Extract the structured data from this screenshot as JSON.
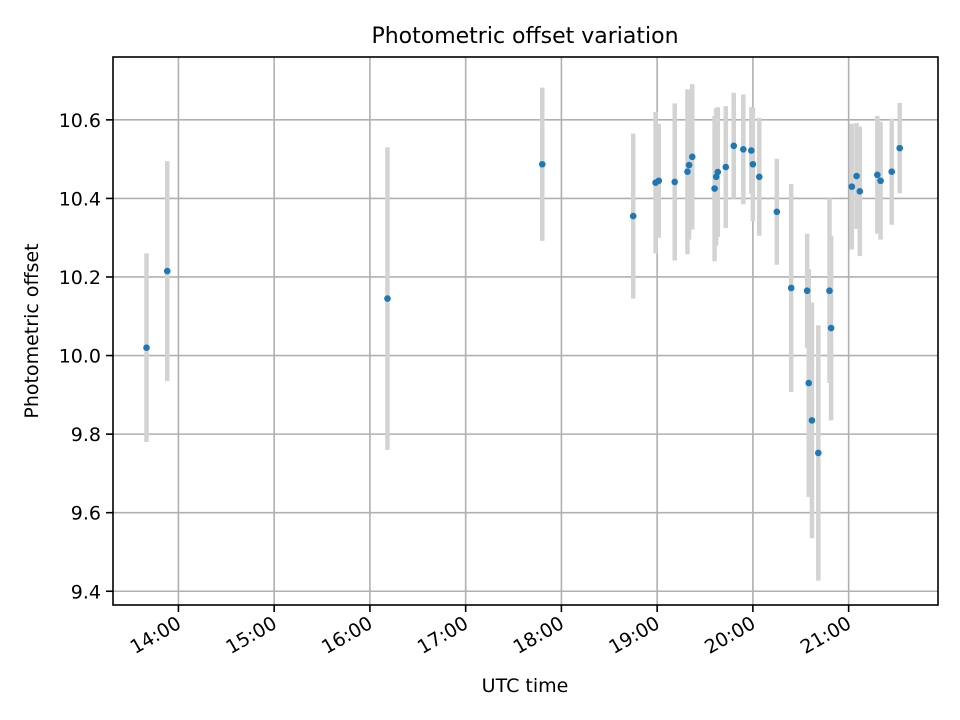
{
  "chart_data": {
    "type": "scatter",
    "title": "Photometric offset variation",
    "xlabel": "UTC time",
    "ylabel": "Photometric offset",
    "x_unit": "time_of_day",
    "xlim": [
      "13:19",
      "21:56"
    ],
    "ylim": [
      9.365,
      10.76
    ],
    "x_ticks": [
      "14:00",
      "15:00",
      "16:00",
      "17:00",
      "18:00",
      "19:00",
      "20:00",
      "21:00"
    ],
    "y_ticks": [
      "9.4",
      "9.6",
      "9.8",
      "10.0",
      "10.2",
      "10.4",
      "10.6"
    ],
    "grid": true,
    "legend": "none",
    "colors": {
      "marker": "#1f77b4",
      "errorbar": "#d3d3d3",
      "grid": "#b0b0b0",
      "axes": "#000000"
    },
    "points": [
      {
        "t": "13:40",
        "y": 10.02,
        "err": 0.24
      },
      {
        "t": "13:53",
        "y": 10.215,
        "err": 0.28
      },
      {
        "t": "16:11",
        "y": 10.145,
        "err": 0.385
      },
      {
        "t": "17:48",
        "y": 10.487,
        "err": 0.195
      },
      {
        "t": "18:45",
        "y": 10.355,
        "err": 0.21
      },
      {
        "t": "18:59",
        "y": 10.44,
        "err": 0.18
      },
      {
        "t": "19:01",
        "y": 10.445,
        "err": 0.145
      },
      {
        "t": "19:11",
        "y": 10.442,
        "err": 0.2
      },
      {
        "t": "19:19",
        "y": 10.468,
        "err": 0.21
      },
      {
        "t": "19:20",
        "y": 10.485,
        "err": 0.19
      },
      {
        "t": "19:22",
        "y": 10.506,
        "err": 0.185
      },
      {
        "t": "19:36",
        "y": 10.425,
        "err": 0.185
      },
      {
        "t": "19:37",
        "y": 10.455,
        "err": 0.175
      },
      {
        "t": "19:38",
        "y": 10.467,
        "err": 0.165
      },
      {
        "t": "19:43",
        "y": 10.48,
        "err": 0.155
      },
      {
        "t": "19:48",
        "y": 10.534,
        "err": 0.135
      },
      {
        "t": "19:54",
        "y": 10.525,
        "err": 0.14
      },
      {
        "t": "19:59",
        "y": 10.522,
        "err": 0.11
      },
      {
        "t": "20:00",
        "y": 10.487,
        "err": 0.145
      },
      {
        "t": "20:04",
        "y": 10.455,
        "err": 0.15
      },
      {
        "t": "20:15",
        "y": 10.366,
        "err": 0.135
      },
      {
        "t": "20:24",
        "y": 10.172,
        "err": 0.265
      },
      {
        "t": "20:34",
        "y": 10.165,
        "err": 0.145
      },
      {
        "t": "20:35",
        "y": 9.93,
        "err": 0.29
      },
      {
        "t": "20:37",
        "y": 9.835,
        "err": 0.3
      },
      {
        "t": "20:41",
        "y": 9.752,
        "err": 0.325
      },
      {
        "t": "20:48",
        "y": 10.165,
        "err": 0.235
      },
      {
        "t": "20:49",
        "y": 10.07,
        "err": 0.235
      },
      {
        "t": "21:02",
        "y": 10.43,
        "err": 0.16
      },
      {
        "t": "21:05",
        "y": 10.457,
        "err": 0.135
      },
      {
        "t": "21:07",
        "y": 10.418,
        "err": 0.165
      },
      {
        "t": "21:18",
        "y": 10.46,
        "err": 0.15
      },
      {
        "t": "21:20",
        "y": 10.445,
        "err": 0.15
      },
      {
        "t": "21:27",
        "y": 10.468,
        "err": 0.135
      },
      {
        "t": "21:32",
        "y": 10.528,
        "err": 0.115
      }
    ]
  }
}
